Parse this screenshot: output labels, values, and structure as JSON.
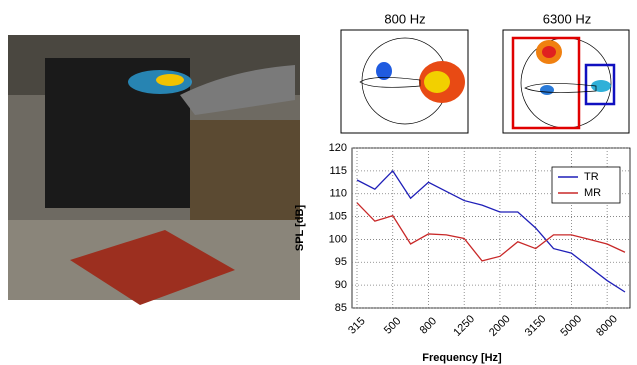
{
  "maps": [
    {
      "label": "800 Hz"
    },
    {
      "label": "6300 Hz"
    }
  ],
  "chart_data": {
    "type": "line",
    "x_label": "Frequency [Hz]",
    "y_label": "SPL [dB]",
    "categories": [
      "315",
      null,
      "500",
      null,
      "800",
      null,
      "1250",
      null,
      "2000",
      null,
      "3150",
      null,
      "5000",
      null,
      "8000",
      null
    ],
    "series": [
      {
        "name": "TR",
        "color": "#1f1fb8",
        "values": [
          113,
          111,
          115,
          109,
          112.5,
          110.5,
          108.5,
          107.5,
          106,
          106,
          102.5,
          98,
          97,
          94,
          91,
          88.5
        ]
      },
      {
        "name": "MR",
        "color": "#c82828",
        "values": [
          108,
          104,
          105.2,
          99,
          101.2,
          101,
          100.2,
          95.3,
          96.3,
          99.5,
          98,
          101,
          101,
          100,
          99,
          97.2
        ]
      }
    ],
    "ylim": [
      85,
      120
    ],
    "yticks": [
      85,
      90,
      95,
      100,
      105,
      110,
      115,
      120
    ],
    "grid": true,
    "legend": "upper-right"
  }
}
